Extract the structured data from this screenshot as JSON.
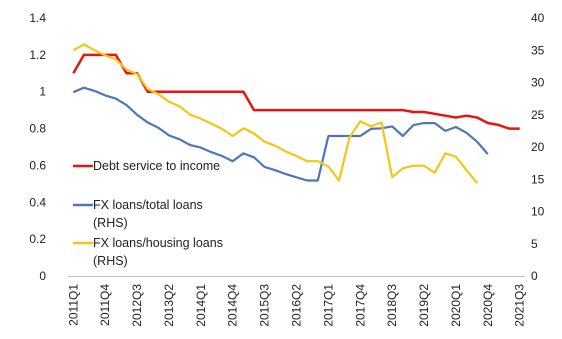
{
  "chart_data": {
    "type": "line",
    "x": [
      "2011Q1",
      "2011Q2",
      "2011Q3",
      "2011Q4",
      "2012Q1",
      "2012Q2",
      "2012Q3",
      "2012Q4",
      "2013Q1",
      "2013Q2",
      "2013Q3",
      "2013Q4",
      "2014Q1",
      "2014Q2",
      "2014Q3",
      "2014Q4",
      "2015Q1",
      "2015Q2",
      "2015Q3",
      "2015Q4",
      "2016Q1",
      "2016Q2",
      "2016Q3",
      "2016Q4",
      "2017Q1",
      "2017Q2",
      "2017Q3",
      "2017Q4",
      "2018Q1",
      "2018Q2",
      "2018Q3",
      "2018Q4",
      "2019Q1",
      "2019Q2",
      "2019Q3",
      "2019Q4",
      "2020Q1",
      "2020Q2",
      "2020Q3",
      "2020Q4",
      "2021Q1",
      "2021Q2",
      "2021Q3"
    ],
    "x_tick_labels": [
      "2011Q1",
      "2011Q4",
      "2012Q3",
      "2013Q2",
      "2014Q1",
      "2014Q4",
      "2015Q3",
      "2016Q2",
      "2017Q1",
      "2017Q4",
      "2018Q3",
      "2019Q2",
      "2020Q1",
      "2020Q4",
      "2021Q3"
    ],
    "y_left": {
      "ylim": [
        0,
        1.4
      ],
      "ticks": [
        "0",
        "0.2",
        "0.4",
        "0.6",
        "0.8",
        "1",
        "1.2",
        "1.4"
      ]
    },
    "y_right": {
      "ylim": [
        0,
        40
      ],
      "ticks": [
        "0",
        "5",
        "10",
        "15",
        "20",
        "25",
        "30",
        "35",
        "40"
      ]
    },
    "series": [
      {
        "name": "Debt service to income",
        "axis": "left",
        "color": "#e8140f",
        "values": [
          1.1,
          1.2,
          1.2,
          1.2,
          1.2,
          1.1,
          1.1,
          1.0,
          1.0,
          1.0,
          1.0,
          1.0,
          1.0,
          1.0,
          1.0,
          1.0,
          1.0,
          0.9,
          0.9,
          0.9,
          0.9,
          0.9,
          0.9,
          0.9,
          0.9,
          0.9,
          0.9,
          0.9,
          0.9,
          0.9,
          0.9,
          0.9,
          0.89,
          0.89,
          0.88,
          0.87,
          0.86,
          0.87,
          0.86,
          0.83,
          0.82,
          0.8,
          0.8
        ]
      },
      {
        "name": "FX loans/total loans (RHS)",
        "axis": "right",
        "color": "#4c78b8",
        "values": [
          28.5,
          29.2,
          28.7,
          28.0,
          27.5,
          26.5,
          25.0,
          23.8,
          23.0,
          21.8,
          21.2,
          20.3,
          19.9,
          19.2,
          18.6,
          17.8,
          19.0,
          18.4,
          16.9,
          16.4,
          15.8,
          15.3,
          14.8,
          14.8,
          21.7,
          21.7,
          21.7,
          21.7,
          22.8,
          22.9,
          23.2,
          21.7,
          23.4,
          23.7,
          23.7,
          22.5,
          23.1,
          22.2,
          20.8,
          18.9,
          null,
          null,
          null
        ]
      },
      {
        "name": "FX loans/housing loans (RHS)",
        "axis": "right",
        "color": "#f6c515",
        "values": [
          35.0,
          35.9,
          35.0,
          34.2,
          33.6,
          32.0,
          31.3,
          29.0,
          28.2,
          27.0,
          26.3,
          25.0,
          24.4,
          23.6,
          22.8,
          21.7,
          22.9,
          22.1,
          20.8,
          20.2,
          19.3,
          18.6,
          17.8,
          17.8,
          17.0,
          14.8,
          21.5,
          24.0,
          23.2,
          23.8,
          15.3,
          16.7,
          17.1,
          17.1,
          16.0,
          19.0,
          18.5,
          16.4,
          14.4,
          null,
          null,
          null,
          null
        ]
      }
    ],
    "legend": {
      "placement": "bottom-left",
      "entries": [
        {
          "lines": [
            "Debt service to income"
          ]
        },
        {
          "lines": [
            "FX loans/total loans",
            "(RHS)"
          ]
        },
        {
          "lines": [
            "FX loans/housing loans",
            "(RHS)"
          ]
        }
      ]
    },
    "grid": false,
    "title": "",
    "xlabel": "",
    "ylabel": ""
  }
}
